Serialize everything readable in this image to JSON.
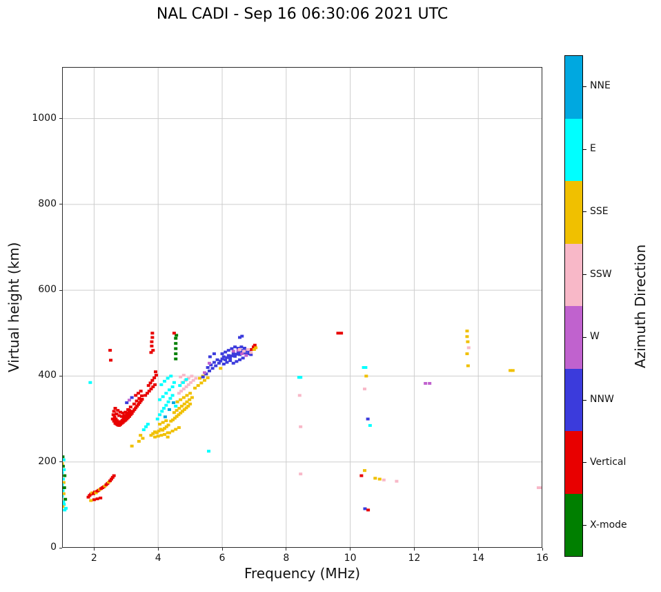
{
  "title": "NAL CADI - Sep 16 06:30:06 2021 UTC",
  "axes": {
    "xlabel": "Frequency (MHz)",
    "ylabel": "Virtual height (km)",
    "xlim": [
      1,
      16
    ],
    "ylim": [
      0,
      1120
    ],
    "xticks": [
      2,
      4,
      6,
      8,
      10,
      12,
      14,
      16
    ],
    "yticks": [
      0,
      200,
      400,
      600,
      800,
      1000
    ]
  },
  "colorbar": {
    "label": "Azimuth Direction",
    "entries": [
      {
        "label": "NNE",
        "color": "#00a8e0"
      },
      {
        "label": "E",
        "color": "#00ffff"
      },
      {
        "label": "SSE",
        "color": "#f0c000"
      },
      {
        "label": "SSW",
        "color": "#f8b8c8"
      },
      {
        "label": "W",
        "color": "#c062ce"
      },
      {
        "label": "NNW",
        "color": "#3b3bdc"
      },
      {
        "label": "Vertical",
        "color": "#e80000"
      },
      {
        "label": "X-mode",
        "color": "#007f00"
      }
    ]
  },
  "chart_data": {
    "type": "scatter",
    "title": "NAL CADI - Sep 16 06:30:06 2021 UTC",
    "xlabel": "Frequency (MHz)",
    "ylabel": "Virtual height (km)",
    "xlim": [
      1,
      16
    ],
    "ylim": [
      0,
      1120
    ],
    "grid": true,
    "legend_position": "right-colorbar",
    "series_key": [
      "NNE",
      "E",
      "SSE",
      "SSW",
      "W",
      "NNW",
      "Vertical",
      "X-mode"
    ],
    "point_format": "[frequency_MHz, virtual_height_km, direction_index]",
    "points": [
      [
        1.02,
        212,
        7
      ],
      [
        1.05,
        205,
        1
      ],
      [
        1.0,
        196,
        2
      ],
      [
        1.03,
        190,
        7
      ],
      [
        1.06,
        182,
        1
      ],
      [
        1.0,
        175,
        1
      ],
      [
        1.08,
        168,
        7
      ],
      [
        1.03,
        160,
        1
      ],
      [
        1.05,
        152,
        2
      ],
      [
        1.0,
        147,
        1
      ],
      [
        1.07,
        140,
        7
      ],
      [
        1.02,
        133,
        1
      ],
      [
        1.05,
        126,
        2
      ],
      [
        1.0,
        120,
        1
      ],
      [
        1.1,
        113,
        7
      ],
      [
        1.04,
        107,
        1
      ],
      [
        1.06,
        101,
        1
      ],
      [
        1.02,
        96,
        2
      ],
      [
        1.12,
        92,
        1
      ],
      [
        1.08,
        88,
        1
      ],
      [
        1.82,
        118,
        6
      ],
      [
        1.86,
        122,
        6
      ],
      [
        1.9,
        125,
        6
      ],
      [
        1.94,
        128,
        2
      ],
      [
        1.98,
        126,
        6
      ],
      [
        2.02,
        130,
        6
      ],
      [
        2.06,
        128,
        2
      ],
      [
        2.1,
        132,
        6
      ],
      [
        2.14,
        134,
        6
      ],
      [
        2.18,
        136,
        2
      ],
      [
        2.22,
        138,
        6
      ],
      [
        2.26,
        140,
        6
      ],
      [
        2.3,
        142,
        6
      ],
      [
        2.34,
        144,
        2
      ],
      [
        2.38,
        147,
        6
      ],
      [
        2.42,
        150,
        6
      ],
      [
        2.46,
        153,
        2
      ],
      [
        2.5,
        156,
        6
      ],
      [
        2.54,
        160,
        6
      ],
      [
        2.58,
        164,
        6
      ],
      [
        2.62,
        168,
        6
      ],
      [
        2.0,
        112,
        6
      ],
      [
        2.1,
        114,
        6
      ],
      [
        2.2,
        116,
        6
      ],
      [
        1.9,
        110,
        2
      ],
      [
        1.88,
        385,
        1
      ],
      [
        2.5,
        460,
        6
      ],
      [
        2.52,
        437,
        6
      ],
      [
        2.58,
        300,
        6
      ],
      [
        2.62,
        295,
        6
      ],
      [
        2.66,
        290,
        6
      ],
      [
        2.7,
        288,
        6
      ],
      [
        2.74,
        286,
        6
      ],
      [
        2.78,
        285,
        6
      ],
      [
        2.82,
        287,
        6
      ],
      [
        2.86,
        290,
        6
      ],
      [
        2.9,
        292,
        6
      ],
      [
        2.94,
        295,
        6
      ],
      [
        2.98,
        297,
        6
      ],
      [
        3.02,
        300,
        6
      ],
      [
        3.06,
        303,
        6
      ],
      [
        3.1,
        306,
        6
      ],
      [
        3.14,
        310,
        6
      ],
      [
        3.18,
        313,
        6
      ],
      [
        2.6,
        310,
        6
      ],
      [
        2.64,
        305,
        6
      ],
      [
        2.68,
        300,
        6
      ],
      [
        2.72,
        296,
        6
      ],
      [
        2.76,
        293,
        6
      ],
      [
        2.8,
        292,
        6
      ],
      [
        2.84,
        294,
        6
      ],
      [
        2.88,
        297,
        6
      ],
      [
        2.92,
        300,
        6
      ],
      [
        2.96,
        303,
        6
      ],
      [
        3.0,
        306,
        6
      ],
      [
        3.04,
        310,
        6
      ],
      [
        3.08,
        314,
        6
      ],
      [
        3.12,
        318,
        6
      ],
      [
        2.62,
        318,
        6
      ],
      [
        2.7,
        312,
        6
      ],
      [
        2.78,
        308,
        6
      ],
      [
        2.86,
        306,
        6
      ],
      [
        2.94,
        308,
        6
      ],
      [
        3.02,
        312,
        6
      ],
      [
        3.1,
        320,
        6
      ],
      [
        2.66,
        325,
        6
      ],
      [
        2.74,
        320,
        6
      ],
      [
        2.82,
        316,
        6
      ],
      [
        2.9,
        314,
        6
      ],
      [
        2.98,
        316,
        6
      ],
      [
        3.06,
        322,
        6
      ],
      [
        3.14,
        328,
        6
      ],
      [
        3.02,
        338,
        5
      ],
      [
        3.1,
        344,
        4
      ],
      [
        3.18,
        350,
        5
      ],
      [
        3.22,
        318,
        6
      ],
      [
        3.26,
        322,
        6
      ],
      [
        3.3,
        326,
        6
      ],
      [
        3.34,
        330,
        6
      ],
      [
        3.38,
        334,
        6
      ],
      [
        3.42,
        338,
        6
      ],
      [
        3.46,
        342,
        6
      ],
      [
        3.5,
        346,
        6
      ],
      [
        3.25,
        335,
        6
      ],
      [
        3.33,
        342,
        6
      ],
      [
        3.41,
        348,
        6
      ],
      [
        3.49,
        354,
        6
      ],
      [
        3.3,
        355,
        6
      ],
      [
        3.38,
        360,
        6
      ],
      [
        3.46,
        365,
        6
      ],
      [
        3.18,
        237,
        2
      ],
      [
        3.4,
        248,
        2
      ],
      [
        3.52,
        255,
        2
      ],
      [
        3.45,
        262,
        2
      ],
      [
        3.55,
        275,
        1
      ],
      [
        3.62,
        282,
        1
      ],
      [
        3.68,
        288,
        1
      ],
      [
        3.6,
        355,
        6
      ],
      [
        3.66,
        360,
        6
      ],
      [
        3.72,
        365,
        6
      ],
      [
        3.78,
        370,
        6
      ],
      [
        3.84,
        375,
        6
      ],
      [
        3.9,
        380,
        6
      ],
      [
        3.7,
        378,
        6
      ],
      [
        3.76,
        384,
        6
      ],
      [
        3.82,
        390,
        6
      ],
      [
        3.88,
        396,
        6
      ],
      [
        3.94,
        402,
        6
      ],
      [
        3.92,
        410,
        6
      ],
      [
        3.8,
        470,
        6
      ],
      [
        3.8,
        480,
        6
      ],
      [
        3.82,
        490,
        6
      ],
      [
        3.82,
        500,
        6
      ],
      [
        3.78,
        455,
        6
      ],
      [
        3.84,
        460,
        6
      ],
      [
        3.78,
        262,
        2
      ],
      [
        3.84,
        266,
        2
      ],
      [
        3.9,
        270,
        2
      ],
      [
        3.96,
        268,
        2
      ],
      [
        4.02,
        272,
        2
      ],
      [
        4.08,
        276,
        2
      ],
      [
        4.14,
        274,
        2
      ],
      [
        4.2,
        278,
        2
      ],
      [
        4.26,
        282,
        2
      ],
      [
        4.32,
        286,
        2
      ],
      [
        3.9,
        258,
        2
      ],
      [
        4.0,
        260,
        2
      ],
      [
        4.1,
        262,
        2
      ],
      [
        4.2,
        264,
        2
      ],
      [
        4.3,
        268,
        2
      ],
      [
        4.05,
        288,
        2
      ],
      [
        4.15,
        292,
        2
      ],
      [
        4.25,
        296,
        2
      ],
      [
        3.98,
        300,
        1
      ],
      [
        4.05,
        310,
        1
      ],
      [
        4.12,
        318,
        1
      ],
      [
        4.18,
        325,
        1
      ],
      [
        4.25,
        332,
        1
      ],
      [
        4.32,
        340,
        1
      ],
      [
        4.38,
        348,
        1
      ],
      [
        4.45,
        355,
        1
      ],
      [
        4.05,
        345,
        1
      ],
      [
        4.15,
        352,
        1
      ],
      [
        4.25,
        360,
        1
      ],
      [
        4.35,
        368,
        1
      ],
      [
        4.45,
        375,
        1
      ],
      [
        4.1,
        380,
        1
      ],
      [
        4.2,
        388,
        1
      ],
      [
        4.3,
        395,
        1
      ],
      [
        4.4,
        400,
        1
      ],
      [
        4.5,
        385,
        1
      ],
      [
        4.55,
        330,
        1
      ],
      [
        4.6,
        340,
        1
      ],
      [
        4.22,
        305,
        0
      ],
      [
        4.35,
        322,
        0
      ],
      [
        4.48,
        338,
        0
      ],
      [
        4.55,
        440,
        7
      ],
      [
        4.55,
        452,
        7
      ],
      [
        4.55,
        464,
        7
      ],
      [
        4.55,
        476,
        7
      ],
      [
        4.55,
        488,
        7
      ],
      [
        4.57,
        495,
        7
      ],
      [
        4.5,
        500,
        6
      ],
      [
        4.4,
        295,
        2
      ],
      [
        4.46,
        298,
        2
      ],
      [
        4.52,
        302,
        2
      ],
      [
        4.58,
        306,
        2
      ],
      [
        4.64,
        310,
        2
      ],
      [
        4.7,
        314,
        2
      ],
      [
        4.76,
        318,
        2
      ],
      [
        4.82,
        322,
        2
      ],
      [
        4.88,
        326,
        2
      ],
      [
        4.94,
        330,
        2
      ],
      [
        5.0,
        335,
        2
      ],
      [
        4.5,
        315,
        2
      ],
      [
        4.58,
        320,
        2
      ],
      [
        4.66,
        325,
        2
      ],
      [
        4.74,
        330,
        2
      ],
      [
        4.82,
        335,
        2
      ],
      [
        4.9,
        340,
        2
      ],
      [
        4.98,
        345,
        2
      ],
      [
        5.06,
        350,
        2
      ],
      [
        4.6,
        340,
        2
      ],
      [
        4.7,
        345,
        2
      ],
      [
        4.8,
        350,
        2
      ],
      [
        4.9,
        355,
        2
      ],
      [
        5.0,
        360,
        2
      ],
      [
        4.35,
        268,
        2
      ],
      [
        4.45,
        272,
        2
      ],
      [
        4.55,
        276,
        2
      ],
      [
        4.65,
        280,
        2
      ],
      [
        4.3,
        258,
        2
      ],
      [
        4.65,
        360,
        3
      ],
      [
        4.72,
        365,
        3
      ],
      [
        4.8,
        370,
        3
      ],
      [
        4.88,
        375,
        3
      ],
      [
        4.95,
        380,
        3
      ],
      [
        5.02,
        385,
        3
      ],
      [
        5.1,
        390,
        3
      ],
      [
        5.18,
        395,
        3
      ],
      [
        4.75,
        385,
        3
      ],
      [
        4.85,
        390,
        3
      ],
      [
        4.95,
        395,
        3
      ],
      [
        5.05,
        400,
        3
      ],
      [
        4.7,
        398,
        3
      ],
      [
        4.8,
        402,
        3
      ],
      [
        4.68,
        378,
        1
      ],
      [
        4.78,
        385,
        1
      ],
      [
        4.88,
        392,
        1
      ],
      [
        5.15,
        372,
        2
      ],
      [
        5.25,
        378,
        2
      ],
      [
        5.35,
        384,
        2
      ],
      [
        5.45,
        390,
        2
      ],
      [
        5.55,
        396,
        2
      ],
      [
        5.3,
        395,
        2
      ],
      [
        5.4,
        400,
        2
      ],
      [
        5.5,
        405,
        2
      ],
      [
        5.4,
        398,
        5
      ],
      [
        5.5,
        405,
        5
      ],
      [
        5.6,
        412,
        5
      ],
      [
        5.7,
        418,
        5
      ],
      [
        5.8,
        424,
        5
      ],
      [
        5.55,
        420,
        5
      ],
      [
        5.65,
        426,
        5
      ],
      [
        5.75,
        432,
        5
      ],
      [
        5.85,
        438,
        5
      ],
      [
        5.9,
        430,
        5
      ],
      [
        5.45,
        408,
        4
      ],
      [
        5.6,
        430,
        4
      ],
      [
        5.62,
        445,
        5
      ],
      [
        5.75,
        452,
        5
      ],
      [
        5.58,
        225,
        1
      ],
      [
        5.95,
        418,
        2
      ],
      [
        5.95,
        435,
        5
      ],
      [
        6.0,
        440,
        5
      ],
      [
        6.05,
        445,
        5
      ],
      [
        6.1,
        438,
        5
      ],
      [
        6.15,
        443,
        5
      ],
      [
        6.2,
        448,
        5
      ],
      [
        6.25,
        442,
        5
      ],
      [
        6.3,
        447,
        5
      ],
      [
        6.35,
        452,
        5
      ],
      [
        6.4,
        446,
        5
      ],
      [
        6.45,
        451,
        5
      ],
      [
        6.5,
        456,
        5
      ],
      [
        6.55,
        450,
        5
      ],
      [
        6.6,
        455,
        5
      ],
      [
        6.65,
        460,
        5
      ],
      [
        6.7,
        454,
        5
      ],
      [
        6.75,
        459,
        5
      ],
      [
        6.8,
        452,
        5
      ],
      [
        6.85,
        457,
        5
      ],
      [
        6.9,
        450,
        5
      ],
      [
        6.0,
        452,
        5
      ],
      [
        6.1,
        456,
        5
      ],
      [
        6.2,
        460,
        5
      ],
      [
        6.3,
        464,
        5
      ],
      [
        6.4,
        468,
        5
      ],
      [
        6.05,
        428,
        5
      ],
      [
        6.15,
        432,
        5
      ],
      [
        6.25,
        436,
        5
      ],
      [
        6.35,
        430,
        5
      ],
      [
        6.45,
        434,
        5
      ],
      [
        6.55,
        438,
        5
      ],
      [
        6.65,
        442,
        5
      ],
      [
        6.5,
        465,
        5
      ],
      [
        6.6,
        468,
        5
      ],
      [
        6.7,
        465,
        5
      ],
      [
        6.55,
        490,
        5
      ],
      [
        6.62,
        493,
        5
      ],
      [
        6.35,
        458,
        4
      ],
      [
        6.5,
        460,
        4
      ],
      [
        6.62,
        452,
        4
      ],
      [
        6.75,
        448,
        4
      ],
      [
        6.55,
        462,
        3
      ],
      [
        6.68,
        458,
        3
      ],
      [
        6.8,
        462,
        3
      ],
      [
        6.9,
        455,
        3
      ],
      [
        6.92,
        462,
        6
      ],
      [
        6.98,
        468,
        6
      ],
      [
        7.02,
        472,
        6
      ],
      [
        7.0,
        462,
        2
      ],
      [
        7.05,
        466,
        2
      ],
      [
        8.4,
        397,
        1
      ],
      [
        8.45,
        397,
        1
      ],
      [
        8.42,
        355,
        3
      ],
      [
        8.45,
        282,
        3
      ],
      [
        8.45,
        172,
        3
      ],
      [
        9.62,
        500,
        6
      ],
      [
        9.72,
        500,
        6
      ],
      [
        10.42,
        420,
        1
      ],
      [
        10.48,
        420,
        1
      ],
      [
        10.5,
        400,
        2
      ],
      [
        10.45,
        370,
        3
      ],
      [
        10.55,
        300,
        5
      ],
      [
        10.62,
        285,
        1
      ],
      [
        10.45,
        180,
        2
      ],
      [
        10.35,
        168,
        6
      ],
      [
        10.78,
        162,
        2
      ],
      [
        10.92,
        160,
        2
      ],
      [
        11.05,
        158,
        3
      ],
      [
        11.45,
        155,
        3
      ],
      [
        10.46,
        91,
        5
      ],
      [
        10.56,
        88,
        6
      ],
      [
        12.35,
        383,
        4
      ],
      [
        12.48,
        383,
        4
      ],
      [
        13.65,
        505,
        2
      ],
      [
        13.65,
        492,
        2
      ],
      [
        13.67,
        480,
        2
      ],
      [
        13.7,
        466,
        3
      ],
      [
        13.65,
        452,
        2
      ],
      [
        13.68,
        424,
        2
      ],
      [
        15.0,
        413,
        2
      ],
      [
        15.08,
        413,
        2
      ],
      [
        15.88,
        140,
        3
      ],
      [
        15.96,
        140,
        3
      ]
    ]
  }
}
